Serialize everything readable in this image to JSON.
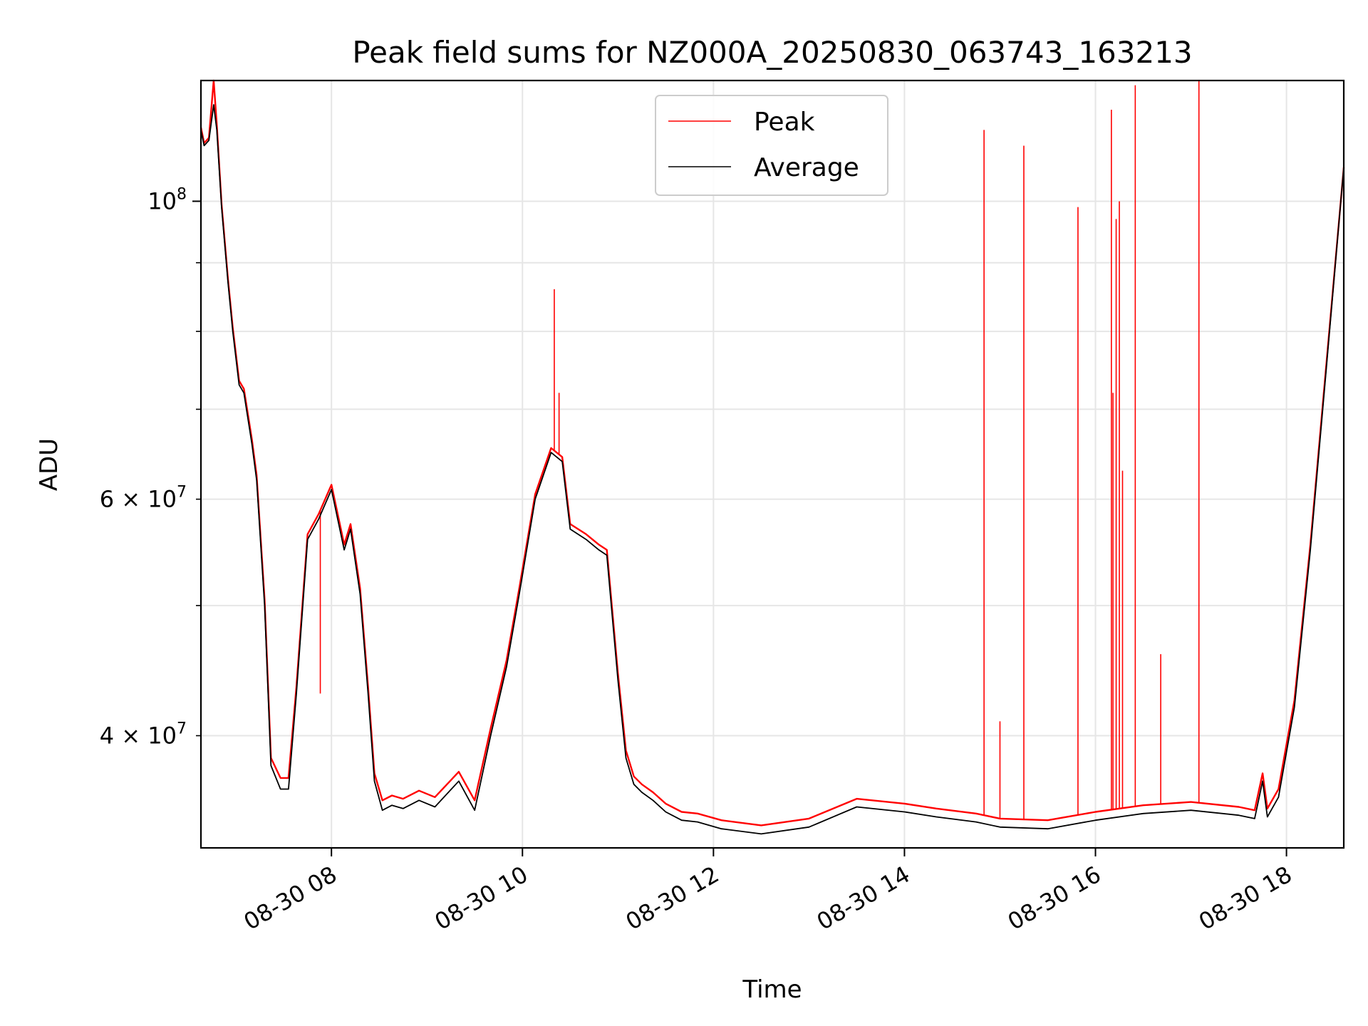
{
  "chart_data": {
    "type": "line",
    "title": "Peak field sums for NZ000A_20250830_063743_163213",
    "xlabel": "Time",
    "ylabel": "ADU",
    "yscale": "log",
    "grid": true,
    "legend_placement": "top-center",
    "xlim": [
      "2025-08-30 06:38",
      "2025-08-30 18:36"
    ],
    "ylim": [
      33000000,
      123000000
    ],
    "x_ticks": [
      {
        "value": "2025-08-30 08:00",
        "label": "08-30 08"
      },
      {
        "value": "2025-08-30 10:00",
        "label": "08-30 10"
      },
      {
        "value": "2025-08-30 12:00",
        "label": "08-30 12"
      },
      {
        "value": "2025-08-30 14:00",
        "label": "08-30 14"
      },
      {
        "value": "2025-08-30 16:00",
        "label": "08-30 16"
      },
      {
        "value": "2025-08-30 18:00",
        "label": "08-30 18"
      }
    ],
    "y_ticks_major": [
      {
        "value": 100000000,
        "label": "10",
        "exp": "8"
      }
    ],
    "y_ticks_minor": [
      {
        "value": 40000000,
        "mant": "4",
        "exp": "7",
        "labeled": true
      },
      {
        "value": 50000000,
        "labeled": false
      },
      {
        "value": 60000000,
        "mant": "6",
        "exp": "7",
        "labeled": true
      },
      {
        "value": 70000000,
        "labeled": false
      },
      {
        "value": 80000000,
        "labeled": false
      },
      {
        "value": 90000000,
        "labeled": false
      }
    ],
    "series": [
      {
        "name": "Average",
        "color": "#000000",
        "x": [
          "2025-08-30 06:38",
          "2025-08-30 06:40",
          "2025-08-30 06:43",
          "2025-08-30 06:46",
          "2025-08-30 06:48",
          "2025-08-30 06:51",
          "2025-08-30 06:55",
          "2025-08-30 06:58",
          "2025-08-30 07:02",
          "2025-08-30 07:05",
          "2025-08-30 07:10",
          "2025-08-30 07:13",
          "2025-08-30 07:18",
          "2025-08-30 07:22",
          "2025-08-30 07:28",
          "2025-08-30 07:33",
          "2025-08-30 07:38",
          "2025-08-30 07:45",
          "2025-08-30 07:52",
          "2025-08-30 08:00",
          "2025-08-30 08:08",
          "2025-08-30 08:12",
          "2025-08-30 08:18",
          "2025-08-30 08:23",
          "2025-08-30 08:27",
          "2025-08-30 08:32",
          "2025-08-30 08:38",
          "2025-08-30 08:45",
          "2025-08-30 08:55",
          "2025-08-30 09:05",
          "2025-08-30 09:20",
          "2025-08-30 09:30",
          "2025-08-30 09:40",
          "2025-08-30 09:50",
          "2025-08-30 09:58",
          "2025-08-30 10:08",
          "2025-08-30 10:18",
          "2025-08-30 10:25",
          "2025-08-30 10:30",
          "2025-08-30 10:40",
          "2025-08-30 10:48",
          "2025-08-30 10:53",
          "2025-08-30 11:00",
          "2025-08-30 11:05",
          "2025-08-30 11:10",
          "2025-08-30 11:15",
          "2025-08-30 11:22",
          "2025-08-30 11:30",
          "2025-08-30 11:40",
          "2025-08-30 11:50",
          "2025-08-30 12:05",
          "2025-08-30 12:30",
          "2025-08-30 13:00",
          "2025-08-30 13:30",
          "2025-08-30 14:00",
          "2025-08-30 14:20",
          "2025-08-30 14:45",
          "2025-08-30 15:00",
          "2025-08-30 15:30",
          "2025-08-30 16:00",
          "2025-08-30 16:30",
          "2025-08-30 17:00",
          "2025-08-30 17:30",
          "2025-08-30 17:40",
          "2025-08-30 17:45",
          "2025-08-30 17:48",
          "2025-08-30 17:55",
          "2025-08-30 18:05",
          "2025-08-30 18:15",
          "2025-08-30 18:25",
          "2025-08-30 18:36"
        ],
        "y": [
          113000000,
          110000000,
          111000000,
          118000000,
          113000000,
          99000000,
          87000000,
          80000000,
          73000000,
          72000000,
          66000000,
          62000000,
          50000000,
          38000000,
          36500000,
          36500000,
          43000000,
          56000000,
          58000000,
          61000000,
          55000000,
          57000000,
          51000000,
          43000000,
          37000000,
          35200000,
          35500000,
          35300000,
          35800000,
          35400000,
          37000000,
          35200000,
          40000000,
          45000000,
          51000000,
          60000000,
          65000000,
          64000000,
          57000000,
          56000000,
          55000000,
          54500000,
          44000000,
          38500000,
          36800000,
          36300000,
          35800000,
          35100000,
          34600000,
          34500000,
          34100000,
          33800000,
          34200000,
          35400000,
          35100000,
          34800000,
          34500000,
          34200000,
          34100000,
          34600000,
          35000000,
          35200000,
          34900000,
          34700000,
          37000000,
          34800000,
          36000000,
          42000000,
          55000000,
          75000000,
          106000000
        ]
      },
      {
        "name": "Peak",
        "color": "#ff0000",
        "x": [
          "2025-08-30 06:38",
          "2025-08-30 06:40",
          "2025-08-30 06:43",
          "2025-08-30 06:46",
          "2025-08-30 06:48",
          "2025-08-30 06:51",
          "2025-08-30 06:55",
          "2025-08-30 06:58",
          "2025-08-30 07:02",
          "2025-08-30 07:05",
          "2025-08-30 07:10",
          "2025-08-30 07:13",
          "2025-08-30 07:18",
          "2025-08-30 07:22",
          "2025-08-30 07:28",
          "2025-08-30 07:33",
          "2025-08-30 07:38",
          "2025-08-30 07:45",
          "2025-08-30 07:52",
          "2025-08-30 08:00",
          "2025-08-30 08:08",
          "2025-08-30 08:12",
          "2025-08-30 08:18",
          "2025-08-30 08:23",
          "2025-08-30 08:27",
          "2025-08-30 08:32",
          "2025-08-30 08:38",
          "2025-08-30 08:45",
          "2025-08-30 08:55",
          "2025-08-30 09:05",
          "2025-08-30 09:20",
          "2025-08-30 09:30",
          "2025-08-30 09:40",
          "2025-08-30 09:50",
          "2025-08-30 09:58",
          "2025-08-30 10:08",
          "2025-08-30 10:18",
          "2025-08-30 10:25",
          "2025-08-30 10:30",
          "2025-08-30 10:40",
          "2025-08-30 10:48",
          "2025-08-30 10:53",
          "2025-08-30 11:00",
          "2025-08-30 11:05",
          "2025-08-30 11:10",
          "2025-08-30 11:15",
          "2025-08-30 11:22",
          "2025-08-30 11:30",
          "2025-08-30 11:40",
          "2025-08-30 11:50",
          "2025-08-30 12:05",
          "2025-08-30 12:30",
          "2025-08-30 13:00",
          "2025-08-30 13:30",
          "2025-08-30 14:00",
          "2025-08-30 14:20",
          "2025-08-30 14:45",
          "2025-08-30 15:00",
          "2025-08-30 15:30",
          "2025-08-30 16:00",
          "2025-08-30 16:30",
          "2025-08-30 17:00",
          "2025-08-30 17:30",
          "2025-08-30 17:40",
          "2025-08-30 17:45",
          "2025-08-30 17:48",
          "2025-08-30 17:55",
          "2025-08-30 18:05",
          "2025-08-30 18:15",
          "2025-08-30 18:25",
          "2025-08-30 18:36"
        ],
        "y": [
          113500000,
          110500000,
          111500000,
          123000000,
          114000000,
          99500000,
          87500000,
          80500000,
          73500000,
          72500000,
          66500000,
          62500000,
          50500000,
          38500000,
          37200000,
          37200000,
          43500000,
          56500000,
          58500000,
          61500000,
          55500000,
          57500000,
          51500000,
          43500000,
          37500000,
          35800000,
          36100000,
          35900000,
          36400000,
          36000000,
          37600000,
          35800000,
          40500000,
          45500000,
          51500000,
          60500000,
          65500000,
          64500000,
          57500000,
          56500000,
          55500000,
          55000000,
          44500000,
          39000000,
          37300000,
          36800000,
          36300000,
          35600000,
          35100000,
          35000000,
          34600000,
          34300000,
          34700000,
          35900000,
          35600000,
          35300000,
          35000000,
          34700000,
          34600000,
          35100000,
          35500000,
          35700000,
          35400000,
          35200000,
          37500000,
          35300000,
          36500000,
          42500000,
          55500000,
          75500000,
          106000000
        ]
      }
    ],
    "peak_spikes": [
      {
        "x": "2025-08-30 07:53",
        "y": 43000000
      },
      {
        "x": "2025-08-30 10:20",
        "y": 86000000
      },
      {
        "x": "2025-08-30 10:23",
        "y": 72000000
      },
      {
        "x": "2025-08-30 14:50",
        "y": 113000000
      },
      {
        "x": "2025-08-30 15:00",
        "y": 41000000
      },
      {
        "x": "2025-08-30 15:15",
        "y": 110000000
      },
      {
        "x": "2025-08-30 15:49",
        "y": 99000000
      },
      {
        "x": "2025-08-30 16:10",
        "y": 117000000
      },
      {
        "x": "2025-08-30 16:11",
        "y": 72000000
      },
      {
        "x": "2025-08-30 16:13",
        "y": 97000000
      },
      {
        "x": "2025-08-30 16:15",
        "y": 100000000
      },
      {
        "x": "2025-08-30 16:17",
        "y": 63000000
      },
      {
        "x": "2025-08-30 16:25",
        "y": 122000000
      },
      {
        "x": "2025-08-30 16:41",
        "y": 46000000
      },
      {
        "x": "2025-08-30 17:05",
        "y": 123000000
      }
    ],
    "legend": [
      {
        "label": "Peak",
        "color": "#ff0000"
      },
      {
        "label": "Average",
        "color": "#000000"
      }
    ]
  }
}
